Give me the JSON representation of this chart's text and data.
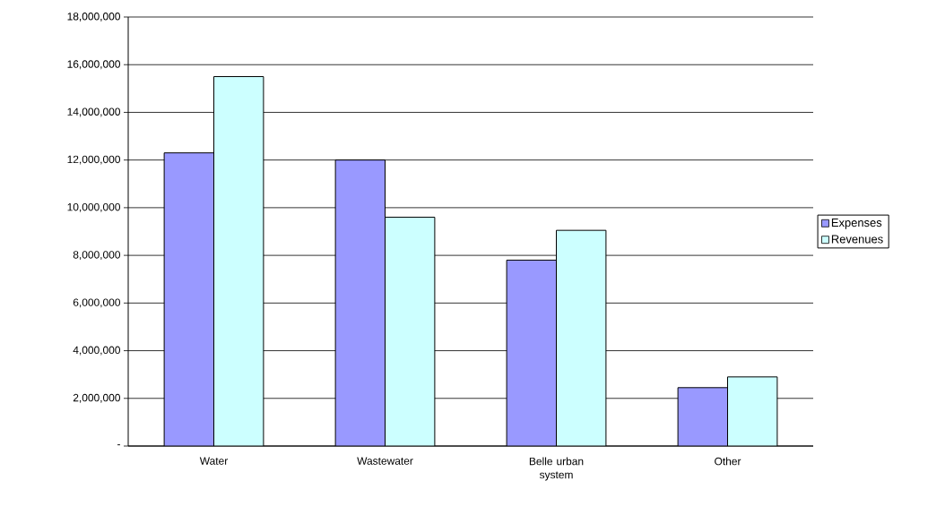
{
  "chart_data": {
    "type": "bar",
    "categories": [
      "Water",
      "Wastewater",
      "Belle urban system",
      "Other"
    ],
    "series": [
      {
        "name": "Expenses",
        "color": "#9999ff",
        "values": [
          12300000,
          12000000,
          7800000,
          2450000
        ]
      },
      {
        "name": "Revenues",
        "color": "#ccffff",
        "values": [
          15500000,
          9600000,
          9050000,
          2900000
        ]
      }
    ],
    "ylim": [
      0,
      18000000
    ],
    "yticks": [
      {
        "value": 0,
        "label": "-"
      },
      {
        "value": 2000000,
        "label": "2,000,000"
      },
      {
        "value": 4000000,
        "label": "4,000,000"
      },
      {
        "value": 6000000,
        "label": "6,000,000"
      },
      {
        "value": 8000000,
        "label": "8,000,000"
      },
      {
        "value": 10000000,
        "label": "10,000,000"
      },
      {
        "value": 12000000,
        "label": "12,000,000"
      },
      {
        "value": 14000000,
        "label": "14,000,000"
      },
      {
        "value": 16000000,
        "label": "16,000,000"
      },
      {
        "value": 18000000,
        "label": "18,000,000"
      }
    ],
    "grid": "y",
    "legend": "right"
  }
}
